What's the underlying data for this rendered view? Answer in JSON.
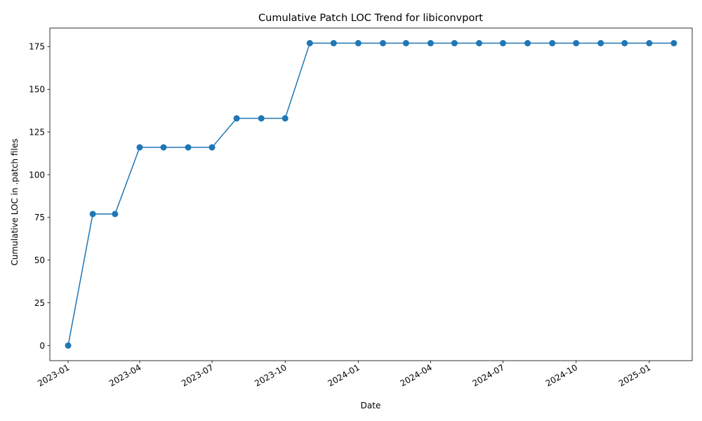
{
  "chart_data": {
    "type": "line",
    "title": "Cumulative Patch LOC Trend for libiconvport",
    "xlabel": "Date",
    "ylabel": "Cumulative LOC in .patch files",
    "x": [
      "2023-01-01",
      "2023-02-01",
      "2023-03-01",
      "2023-04-01",
      "2023-05-01",
      "2023-06-01",
      "2023-07-01",
      "2023-08-01",
      "2023-09-01",
      "2023-10-01",
      "2023-11-01",
      "2023-12-01",
      "2024-01-01",
      "2024-02-01",
      "2024-03-01",
      "2024-04-01",
      "2024-05-01",
      "2024-06-01",
      "2024-07-01",
      "2024-08-01",
      "2024-09-01",
      "2024-10-01",
      "2024-11-01",
      "2024-12-01",
      "2025-01-01",
      "2025-02-01"
    ],
    "series": [
      {
        "values": [
          0,
          77,
          77,
          116,
          116,
          116,
          116,
          133,
          133,
          133,
          177,
          177,
          177,
          177,
          177,
          177,
          177,
          177,
          177,
          177,
          177,
          177,
          177,
          177,
          177,
          177
        ],
        "color": "#1f77b4",
        "marker": "circle"
      }
    ],
    "xticks": [
      "2023-01",
      "2023-04",
      "2023-07",
      "2023-10",
      "2024-01",
      "2024-04",
      "2024-07",
      "2024-10",
      "2025-01"
    ],
    "yticks": [
      0,
      25,
      50,
      75,
      100,
      125,
      150,
      175
    ],
    "ylim": [
      -8.85,
      185.85
    ],
    "xlim": [
      "2022-12-09",
      "2025-02-24"
    ],
    "grid": false,
    "legend": "none"
  }
}
